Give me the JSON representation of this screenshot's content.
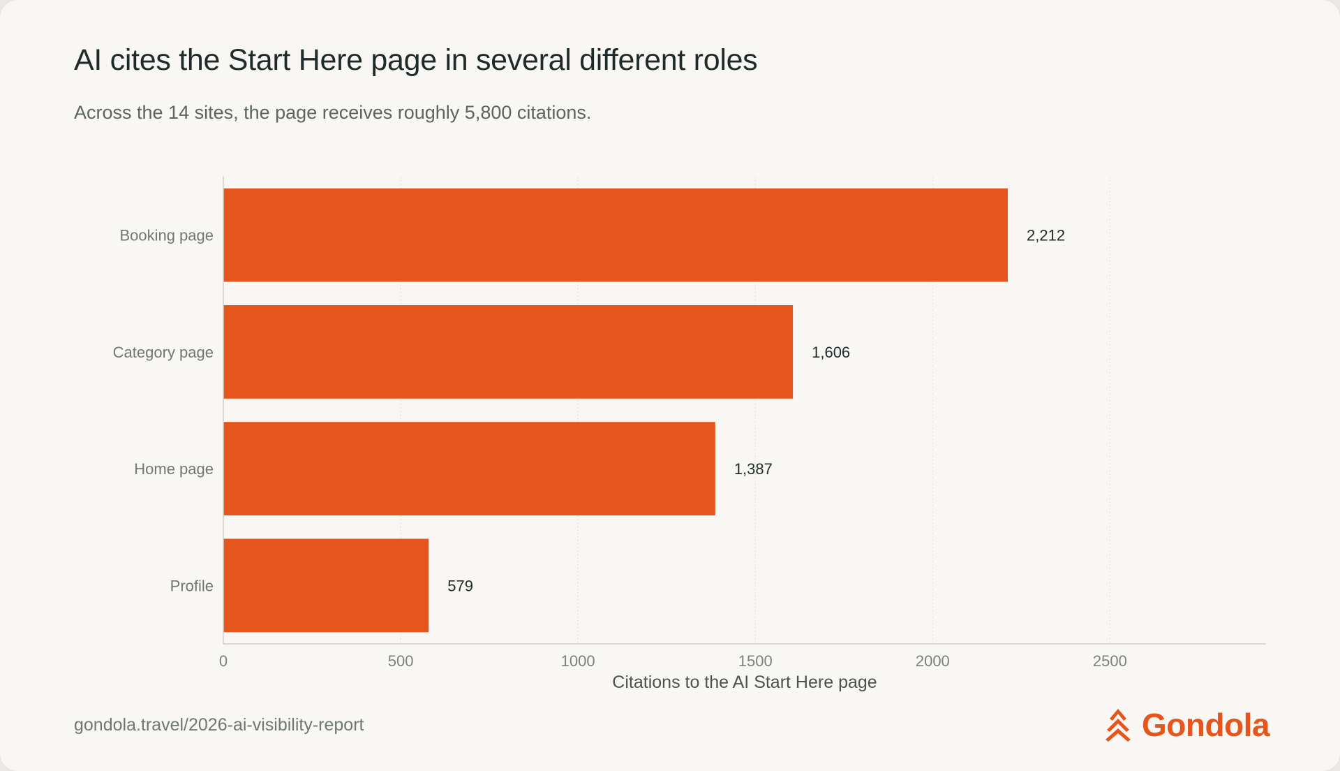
{
  "title": "AI cites the Start Here page in several different roles",
  "subtitle": "Across the 14 sites, the page receives roughly 5,800 citations.",
  "footer": {
    "url": "gondola.travel/2026-ai-visibility-report",
    "brand": "Gondola"
  },
  "colors": {
    "bar": "#e5551c",
    "brand": "#e5551c",
    "background": "#f8f7f4",
    "axis": "#cfcfcb",
    "grid": "#e6e4df"
  },
  "icons": {
    "logo": "gondola-chevron-icon"
  },
  "chart_data": {
    "type": "bar",
    "orientation": "horizontal",
    "categories": [
      "Booking page",
      "Category page",
      "Home page",
      "Profile"
    ],
    "values": [
      2212,
      1606,
      1387,
      579
    ],
    "value_labels": [
      "2,212",
      "1,606",
      "1,387",
      "579"
    ],
    "xlabel": "Citations to the AI Start Here page",
    "ylabel": "",
    "xlim": [
      0,
      2940
    ],
    "xticks": [
      0,
      500,
      1000,
      1500,
      2000,
      2500
    ],
    "grid": "vertical dotted",
    "legend": "none"
  }
}
